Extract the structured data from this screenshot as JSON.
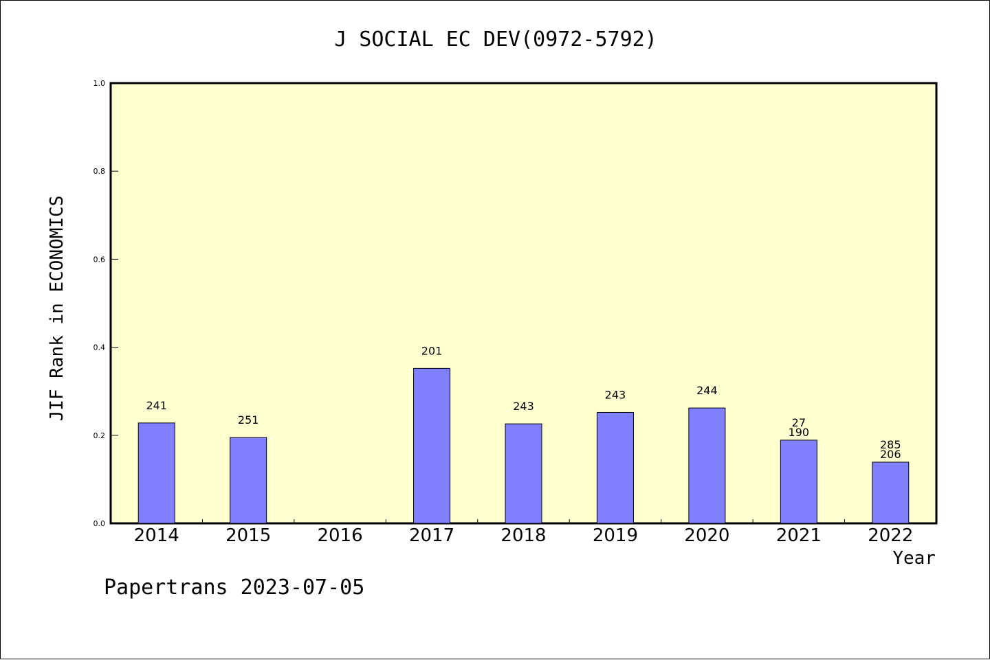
{
  "chart_data": {
    "type": "bar",
    "title": "J SOCIAL EC DEV(0972-5792)",
    "xlabel": "Year",
    "ylabel": "JIF Rank in ECONOMICS",
    "ylim": [
      0,
      1.0
    ],
    "yticks": [
      "0.0",
      "0.2",
      "0.4",
      "0.6",
      "0.8",
      "1.0"
    ],
    "categories": [
      "2014",
      "2015",
      "2016",
      "2017",
      "2018",
      "2019",
      "2020",
      "2021",
      "2022"
    ],
    "values": [
      0.228,
      0.195,
      null,
      0.352,
      0.226,
      0.252,
      0.262,
      0.189,
      0.139
    ],
    "labels": [
      [
        "241"
      ],
      [
        "251"
      ],
      [],
      [
        "201"
      ],
      [
        "243"
      ],
      [
        "243"
      ],
      [
        "244"
      ],
      [
        "27",
        "190"
      ],
      [
        "285",
        "206"
      ]
    ],
    "grid": false,
    "legend": "none",
    "colors": {
      "plot_background": "#FFFFD0",
      "bar": "#8080FF"
    }
  },
  "footer": "Papertrans 2023-07-05"
}
